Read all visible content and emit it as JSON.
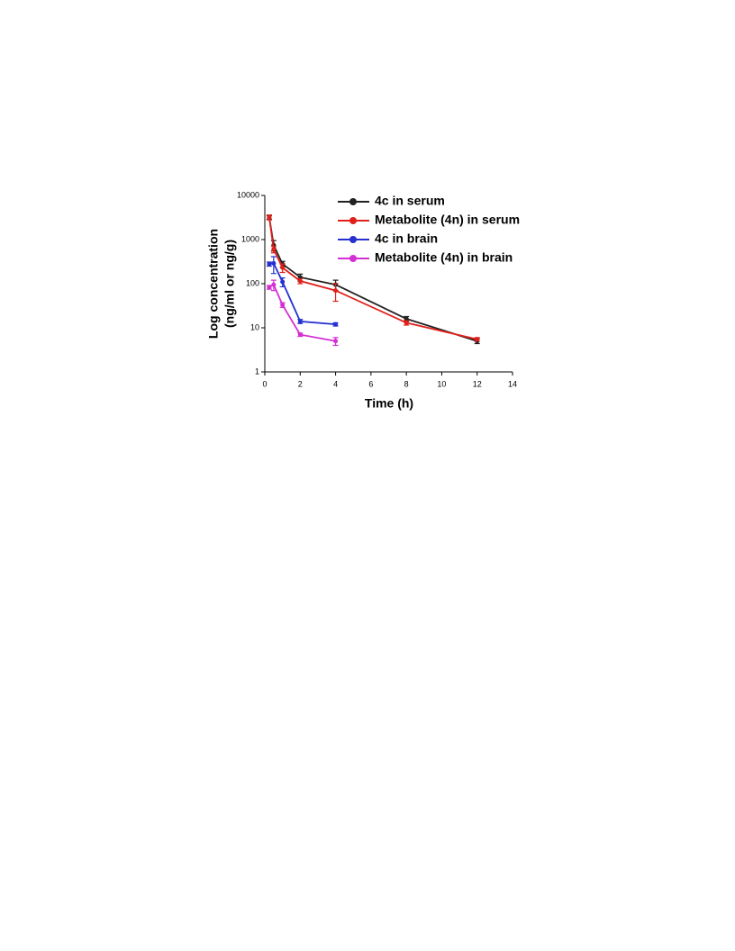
{
  "chart_data": {
    "type": "line",
    "xlabel": "Time (h)",
    "ylabel": [
      "Log concentration",
      "(ng/ml or ng/g)"
    ],
    "log_y": true,
    "legend": "top-right",
    "xlim": [
      0,
      14
    ],
    "xticks": [
      0,
      2,
      4,
      6,
      8,
      10,
      12,
      14
    ],
    "ylim": [
      1,
      10000
    ],
    "yticks": [
      1,
      10,
      100,
      1000,
      10000
    ],
    "series": [
      {
        "name": "4c  in serum",
        "color": "#222222",
        "x": [
          0.25,
          0.5,
          1,
          2,
          4,
          8,
          12
        ],
        "values": [
          3200,
          750,
          280,
          140,
          95,
          16,
          5
        ],
        "errors": [
          300,
          200,
          40,
          25,
          25,
          2,
          0.6
        ]
      },
      {
        "name": "Metabolite (4n) in serum",
        "color": "#e0201b",
        "x": [
          0.25,
          0.5,
          1,
          2,
          4,
          8,
          12
        ],
        "values": [
          3200,
          600,
          230,
          115,
          70,
          13,
          5.5
        ],
        "errors": [
          400,
          100,
          50,
          15,
          30,
          1.5,
          0.5
        ]
      },
      {
        "name": "4c in brain",
        "color": "#2430d0",
        "x": [
          0.25,
          0.5,
          1,
          2,
          4
        ],
        "values": [
          280,
          290,
          110,
          14,
          12
        ],
        "errors": [
          30,
          120,
          25,
          1.5,
          1
        ]
      },
      {
        "name": "Metabolite (4n) in brain",
        "color": "#d42fd4",
        "x": [
          0.25,
          0.5,
          1,
          2,
          4
        ],
        "values": [
          83,
          95,
          33,
          7,
          5
        ],
        "errors": [
          8,
          25,
          4,
          0.6,
          1
        ]
      }
    ]
  }
}
